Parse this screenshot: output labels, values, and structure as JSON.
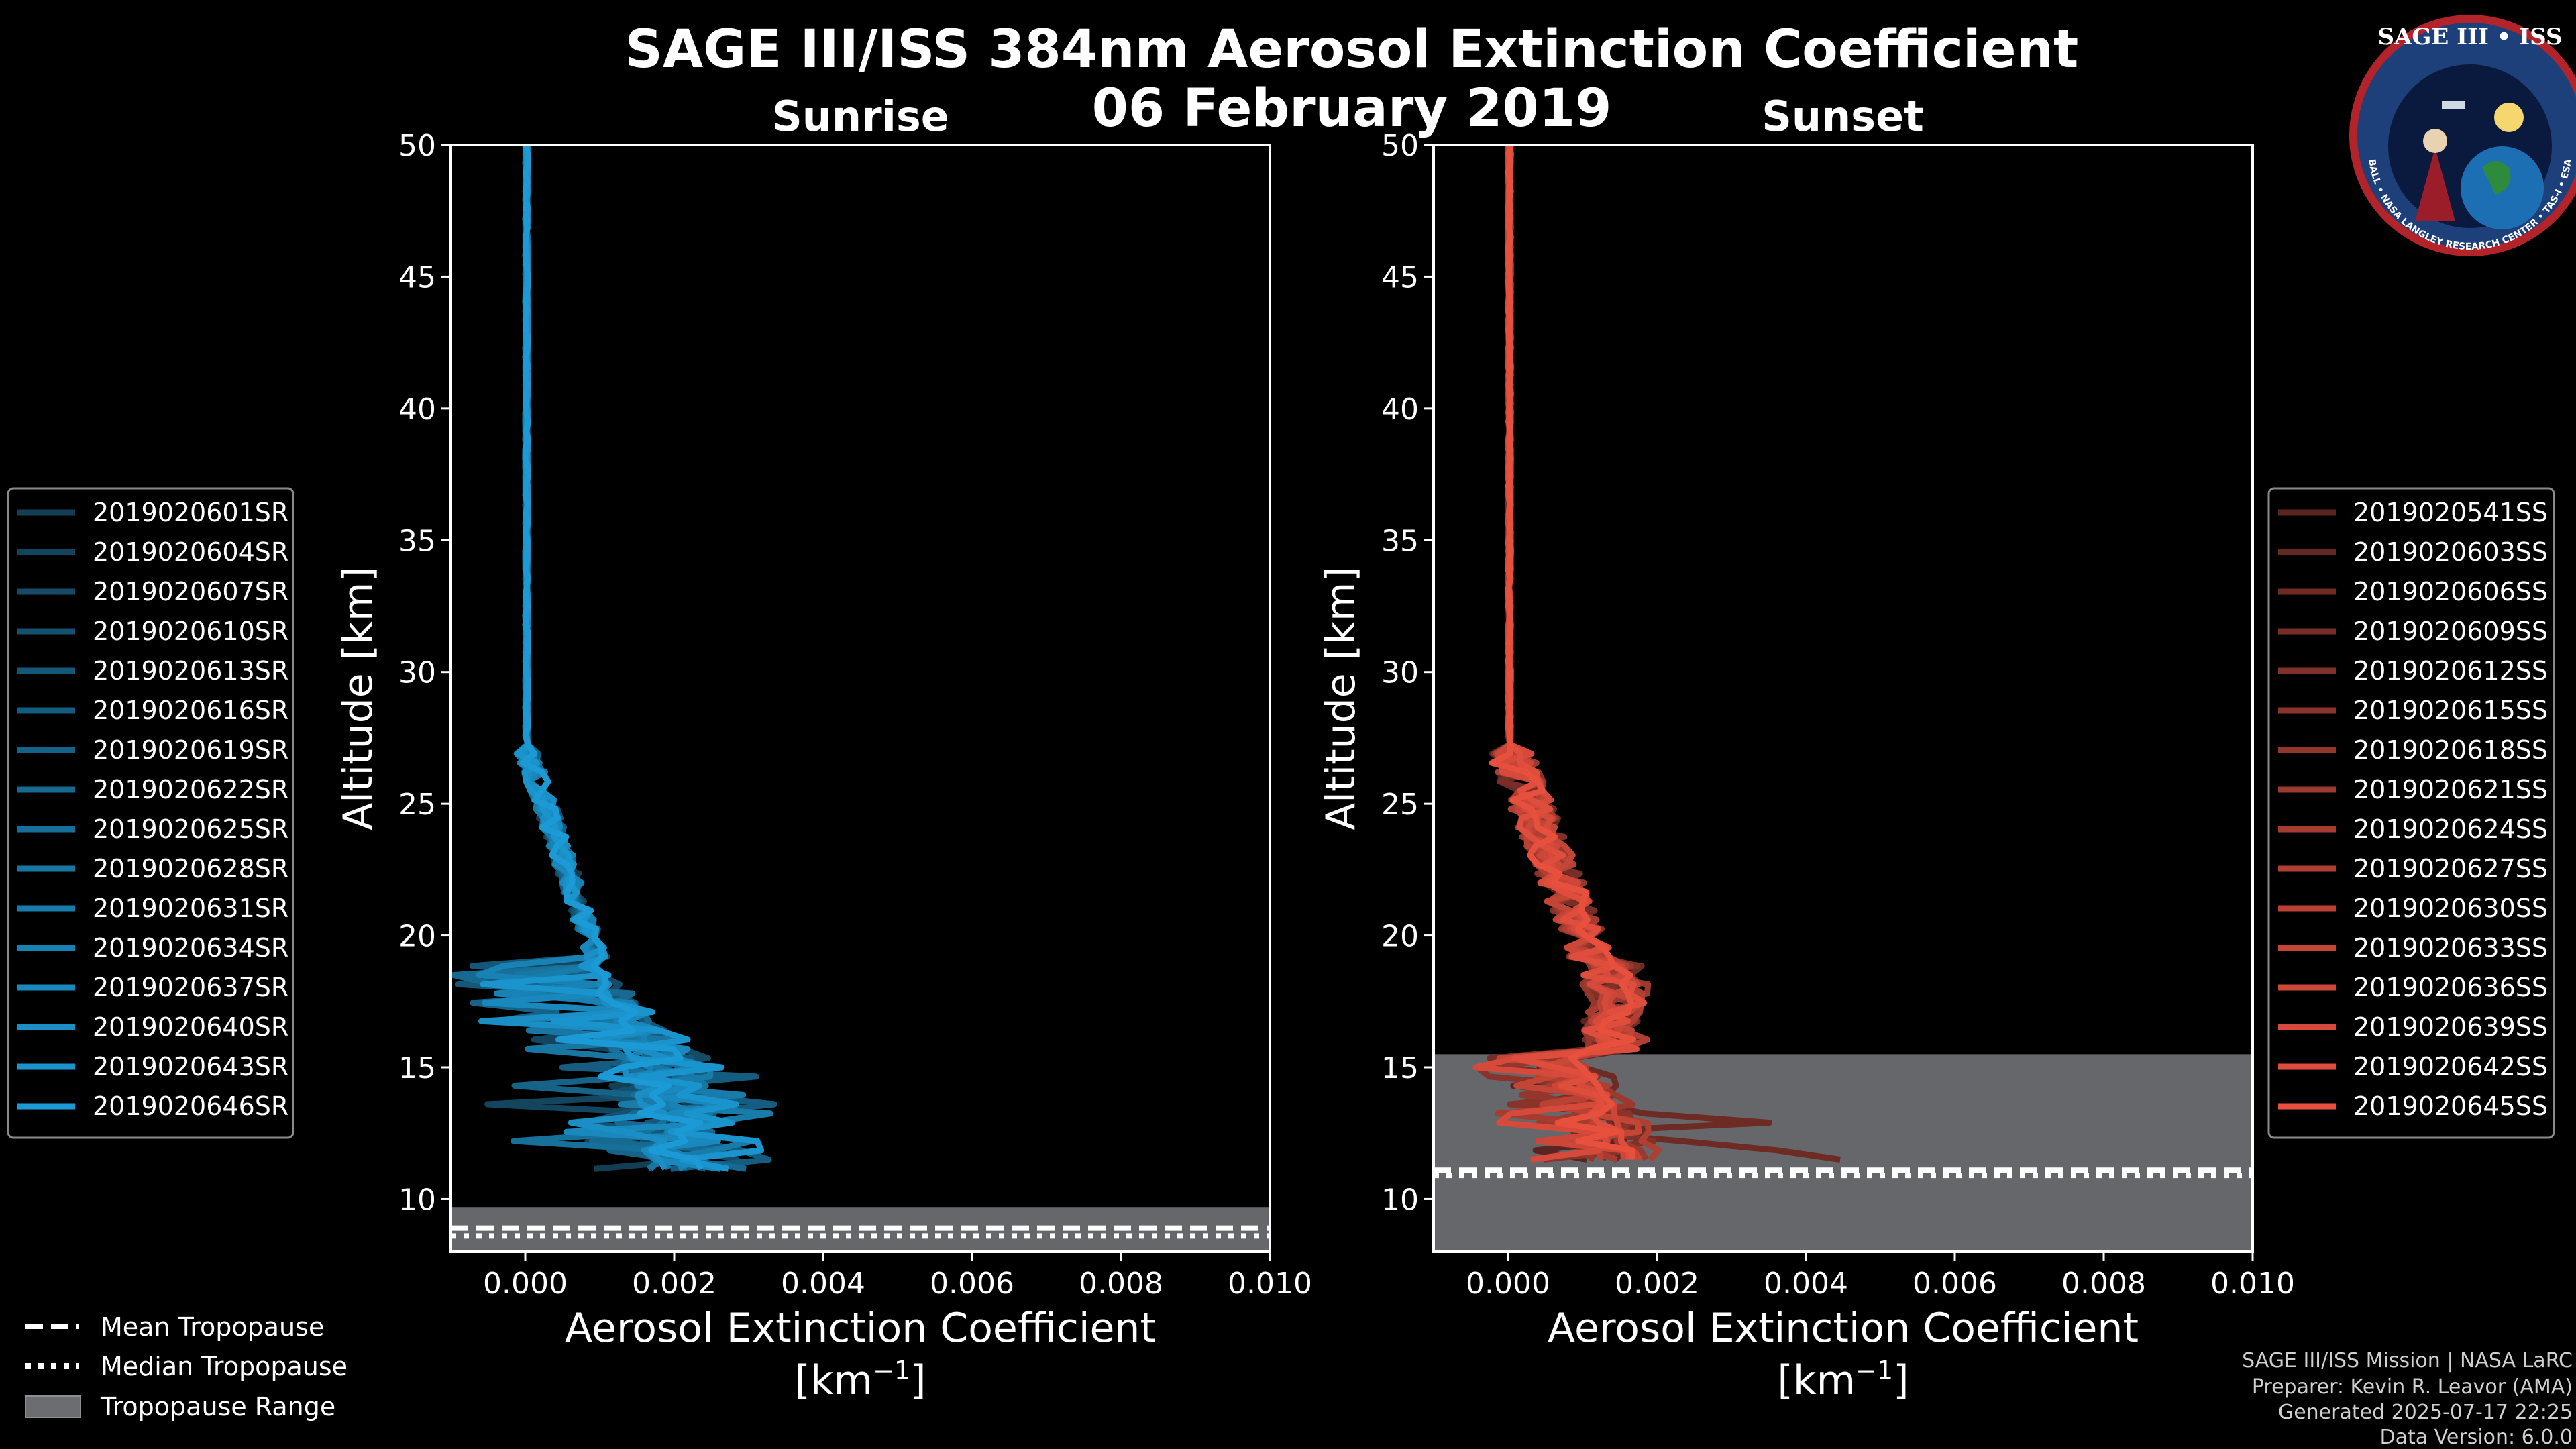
{
  "title": {
    "line1": "SAGE III/ISS 384nm Aerosol Extinction Coefficient",
    "line2": "06 February 2019"
  },
  "logo": {
    "text": "SAGE III • ISS",
    "ring_text": "BALL • NASA LANGLEY RESEARCH CENTER • TAS-I • ESA"
  },
  "credits": [
    "SAGE III/ISS Mission | NASA LaRC",
    "Preparer: Kevin R. Leavor (AMA)",
    "Generated 2025-07-17 22:25",
    "Data Version: 6.0.0"
  ],
  "bottom_legend": [
    {
      "label": "Mean Tropopause",
      "style": "dashed"
    },
    {
      "label": "Median Tropopause",
      "style": "dotted"
    },
    {
      "label": "Tropopause Range",
      "style": "patch"
    }
  ],
  "chart_data": [
    {
      "type": "line",
      "title": "Sunrise",
      "xlabel": "Aerosol Extinction Coefficient",
      "xlabel_unit": "[km",
      "xlabel_sup": "−1",
      "xlabel_close": "]",
      "ylabel": "Altitude [km]",
      "xlim": [
        -0.001,
        0.01
      ],
      "ylim": [
        8,
        50
      ],
      "xticks": [
        0.0,
        0.002,
        0.004,
        0.006,
        0.008,
        0.01
      ],
      "xtick_labels": [
        "0.000",
        "0.002",
        "0.004",
        "0.006",
        "0.008",
        "0.010"
      ],
      "yticks": [
        10,
        15,
        20,
        25,
        30,
        35,
        40,
        45,
        50
      ],
      "ytick_labels": [
        "10",
        "15",
        "20",
        "25",
        "30",
        "35",
        "40",
        "45",
        "50"
      ],
      "color": "#1b9ad6",
      "legend_position": "left",
      "tropopause": {
        "mean": 8.9,
        "median": 8.6,
        "range": [
          8.0,
          9.7
        ]
      },
      "series": [
        {
          "name": "2019020601SR",
          "peak": 0.0025
        },
        {
          "name": "2019020604SR",
          "peak": 0.0021
        },
        {
          "name": "2019020607SR",
          "peak": 0.003
        },
        {
          "name": "2019020610SR",
          "peak": 0.0018
        },
        {
          "name": "2019020613SR",
          "peak": 0.0027
        },
        {
          "name": "2019020616SR",
          "peak": 0.0036
        },
        {
          "name": "2019020619SR",
          "peak": 0.0022
        },
        {
          "name": "2019020622SR",
          "peak": 0.0031
        },
        {
          "name": "2019020625SR",
          "peak": 0.0019
        },
        {
          "name": "2019020628SR",
          "peak": 0.0026
        },
        {
          "name": "2019020631SR",
          "peak": 0.0034
        },
        {
          "name": "2019020634SR",
          "peak": 0.0023
        },
        {
          "name": "2019020637SR",
          "peak": 0.0028
        },
        {
          "name": "2019020640SR",
          "peak": 0.002
        },
        {
          "name": "2019020643SR",
          "peak": 0.0032
        },
        {
          "name": "2019020646SR",
          "peak": 0.0024
        }
      ]
    },
    {
      "type": "line",
      "title": "Sunset",
      "xlabel": "Aerosol Extinction Coefficient",
      "xlabel_unit": "[km",
      "xlabel_sup": "−1",
      "xlabel_close": "]",
      "ylabel": "Altitude [km]",
      "xlim": [
        -0.001,
        0.01
      ],
      "ylim": [
        8,
        50
      ],
      "xticks": [
        0.0,
        0.002,
        0.004,
        0.006,
        0.008,
        0.01
      ],
      "xtick_labels": [
        "0.000",
        "0.002",
        "0.004",
        "0.006",
        "0.008",
        "0.010"
      ],
      "yticks": [
        10,
        15,
        20,
        25,
        30,
        35,
        40,
        45,
        50
      ],
      "ytick_labels": [
        "10",
        "15",
        "20",
        "25",
        "30",
        "35",
        "40",
        "45",
        "50"
      ],
      "color": "#e8503e",
      "legend_position": "right",
      "tropopause": {
        "mean": 11.1,
        "median": 10.9,
        "range": [
          8.0,
          15.5
        ]
      },
      "series": [
        {
          "name": "2019020541SS",
          "peak": 0.0016
        },
        {
          "name": "2019020603SS",
          "peak": 0.0018
        },
        {
          "name": "2019020606SS",
          "peak": 0.0045
        },
        {
          "name": "2019020609SS",
          "peak": 0.0014
        },
        {
          "name": "2019020612SS",
          "peak": 0.002
        },
        {
          "name": "2019020615SS",
          "peak": 0.0017
        },
        {
          "name": "2019020618SS",
          "peak": 0.0012
        },
        {
          "name": "2019020621SS",
          "peak": 0.0019
        },
        {
          "name": "2019020624SS",
          "peak": 0.0015
        },
        {
          "name": "2019020627SS",
          "peak": 0.0021
        },
        {
          "name": "2019020630SS",
          "peak": 0.0013
        },
        {
          "name": "2019020633SS",
          "peak": 0.0018
        },
        {
          "name": "2019020636SS",
          "peak": 0.0016
        },
        {
          "name": "2019020639SS",
          "peak": 0.0014
        },
        {
          "name": "2019020642SS",
          "peak": 0.0019
        },
        {
          "name": "2019020645SS",
          "peak": 0.0017
        }
      ]
    }
  ]
}
